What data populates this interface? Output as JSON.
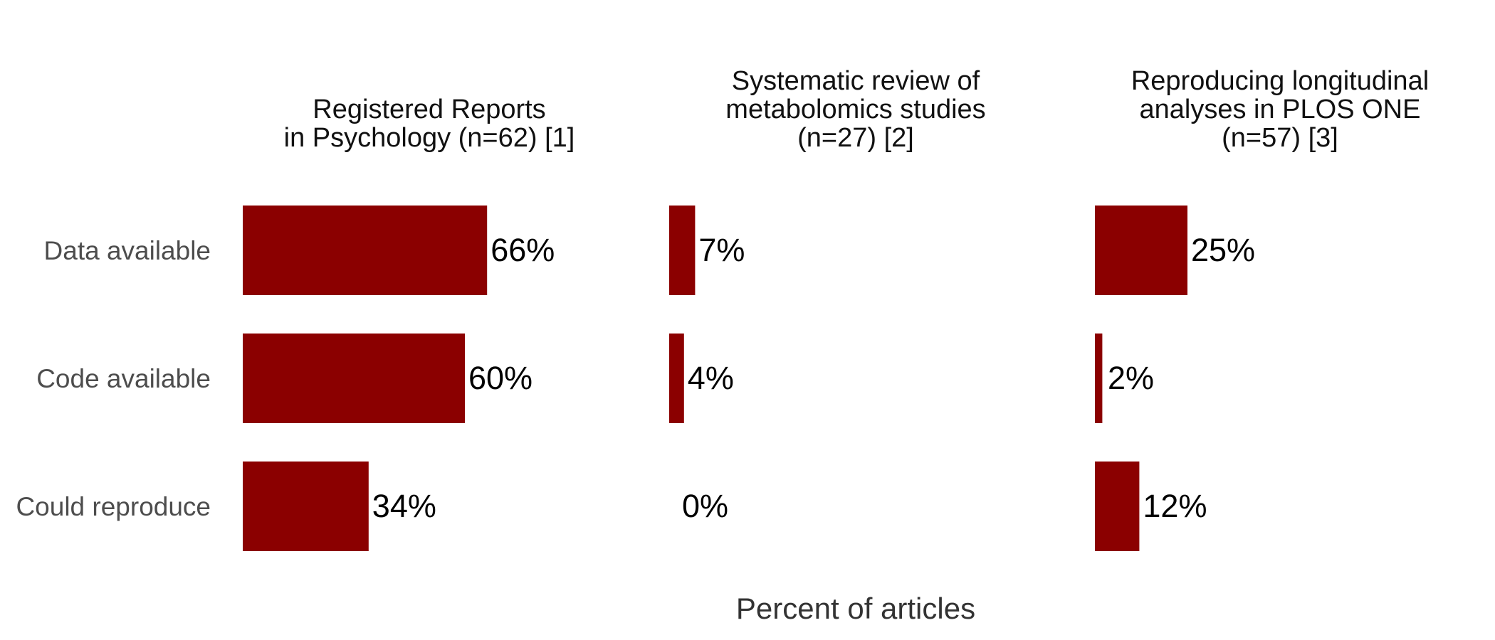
{
  "chart_data": {
    "type": "bar",
    "orientation": "horizontal",
    "layout": "small-multiples",
    "categories": [
      "Data available",
      "Code available",
      "Could reproduce"
    ],
    "panels": [
      {
        "title_lines": [
          "Registered Reports",
          "in Psychology (n=62) [1]"
        ],
        "values": [
          66,
          60,
          34
        ],
        "labels": [
          "66%",
          "60%",
          "34%"
        ]
      },
      {
        "title_lines": [
          "Systematic review of",
          "metabolomics studies",
          "(n=27) [2]"
        ],
        "values": [
          7,
          4,
          0
        ],
        "labels": [
          "7%",
          "4%",
          "0%"
        ]
      },
      {
        "title_lines": [
          "Reproducing longitudinal",
          "analyses in PLOS ONE",
          "(n=57) [3]"
        ],
        "values": [
          25,
          2,
          12
        ],
        "labels": [
          "25%",
          "2%",
          "12%"
        ]
      }
    ],
    "xlabel": "Percent of articles",
    "xlim": [
      0,
      100
    ],
    "grid": false,
    "bar_color": "#8b0000",
    "row_label_color": "#4d4d4d",
    "value_label_color": "#000000"
  }
}
